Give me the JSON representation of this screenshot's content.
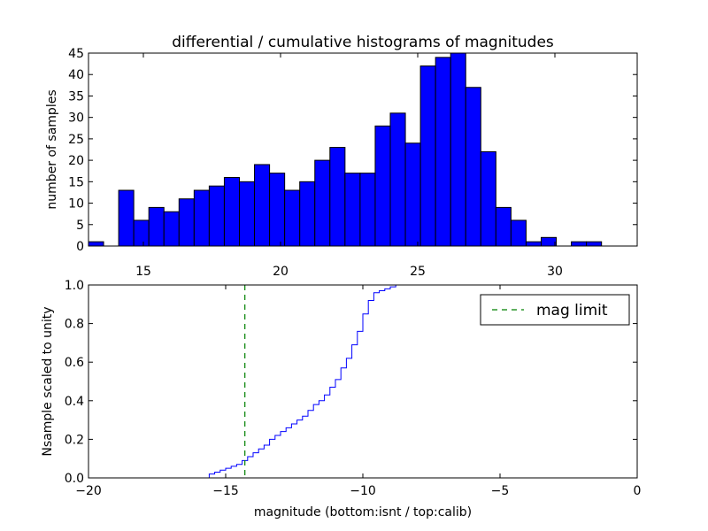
{
  "chart_data": [
    {
      "type": "bar",
      "title": "differential / cumulative histograms of magnitudes",
      "ylabel": "number of samples",
      "xlim": [
        13.0,
        33.0
      ],
      "ylim": [
        0,
        45
      ],
      "yticks": [
        "0",
        "5",
        "10",
        "15",
        "20",
        "25",
        "30",
        "35",
        "40",
        "45"
      ],
      "xticks": [
        "15",
        "20",
        "25",
        "30"
      ],
      "bin_width": 0.55,
      "bin_start": 13.0,
      "values": [
        1,
        0,
        13,
        6,
        9,
        8,
        11,
        13,
        14,
        16,
        15,
        19,
        17,
        13,
        15,
        20,
        23,
        17,
        17,
        28,
        31,
        24,
        42,
        44,
        45,
        37,
        22,
        9,
        6,
        1,
        2,
        0,
        1,
        1
      ],
      "bar_color": "#0000ff"
    },
    {
      "type": "line",
      "xlabel": "magnitude (bottom:isnt / top:calib)",
      "ylabel": "Nsample scaled to unity",
      "xlim": [
        -20,
        0
      ],
      "ylim": [
        0.0,
        1.0
      ],
      "xticks": [
        "−20",
        "−15",
        "−10",
        "−5",
        "0"
      ],
      "yticks": [
        "0.0",
        "0.2",
        "0.4",
        "0.6",
        "0.8",
        "1.0"
      ],
      "series": [
        {
          "color": "#0000ff",
          "x": [
            -20.0,
            -15.6,
            -15.4,
            -15.2,
            -15.0,
            -14.8,
            -14.6,
            -14.4,
            -14.2,
            -14.0,
            -13.8,
            -13.6,
            -13.4,
            -13.2,
            -13.0,
            -12.8,
            -12.6,
            -12.4,
            -12.2,
            -12.0,
            -11.8,
            -11.6,
            -11.4,
            -11.2,
            -11.0,
            -10.8,
            -10.6,
            -10.4,
            -10.2,
            -10.0,
            -9.8,
            -9.6,
            -9.4,
            -9.2,
            -9.0,
            -8.8,
            -8.6,
            -8.4,
            -0.1
          ],
          "y": [
            0.0,
            0.02,
            0.03,
            0.04,
            0.05,
            0.06,
            0.07,
            0.09,
            0.11,
            0.13,
            0.15,
            0.17,
            0.2,
            0.22,
            0.24,
            0.26,
            0.28,
            0.3,
            0.32,
            0.35,
            0.38,
            0.4,
            0.43,
            0.47,
            0.51,
            0.57,
            0.62,
            0.69,
            0.76,
            0.85,
            0.92,
            0.96,
            0.97,
            0.98,
            0.99,
            1.0,
            1.0,
            1.0,
            1.0
          ]
        },
        {
          "name": "mag limit",
          "color": "#008000",
          "style": "dashed",
          "x_const": -14.3
        }
      ],
      "legend_position": "top-right"
    }
  ]
}
